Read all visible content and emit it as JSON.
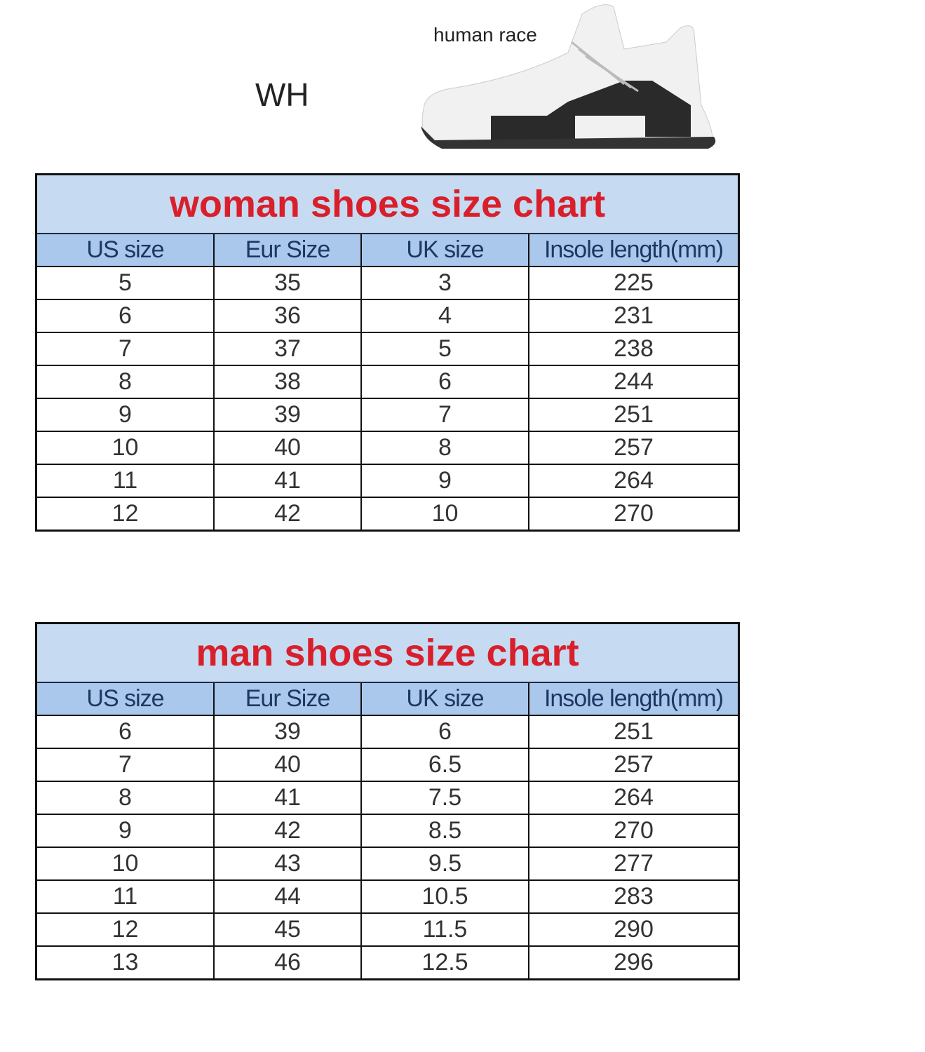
{
  "header": {
    "model_code": "WH",
    "product_label": "human race"
  },
  "columns": [
    "US size",
    "Eur Size",
    "UK size",
    "Insole length(mm)"
  ],
  "woman_chart": {
    "title": "woman shoes size chart",
    "rows": [
      [
        "5",
        "35",
        "3",
        "225"
      ],
      [
        "6",
        "36",
        "4",
        "231"
      ],
      [
        "7",
        "37",
        "5",
        "238"
      ],
      [
        "8",
        "38",
        "6",
        "244"
      ],
      [
        "9",
        "39",
        "7",
        "251"
      ],
      [
        "10",
        "40",
        "8",
        "257"
      ],
      [
        "11",
        "41",
        "9",
        "264"
      ],
      [
        "12",
        "42",
        "10",
        "270"
      ]
    ]
  },
  "man_chart": {
    "title": "man shoes size chart",
    "rows": [
      [
        "6",
        "39",
        "6",
        "251"
      ],
      [
        "7",
        "40",
        "6.5",
        "257"
      ],
      [
        "8",
        "41",
        "7.5",
        "264"
      ],
      [
        "9",
        "42",
        "8.5",
        "270"
      ],
      [
        "10",
        "43",
        "9.5",
        "277"
      ],
      [
        "11",
        "44",
        "10.5",
        "283"
      ],
      [
        "12",
        "45",
        "11.5",
        "290"
      ],
      [
        "13",
        "46",
        "12.5",
        "296"
      ]
    ]
  },
  "colors": {
    "title_text": "#d81f2b",
    "title_bg": "#c6dbf1",
    "header_bg": "#a9c8ec"
  }
}
